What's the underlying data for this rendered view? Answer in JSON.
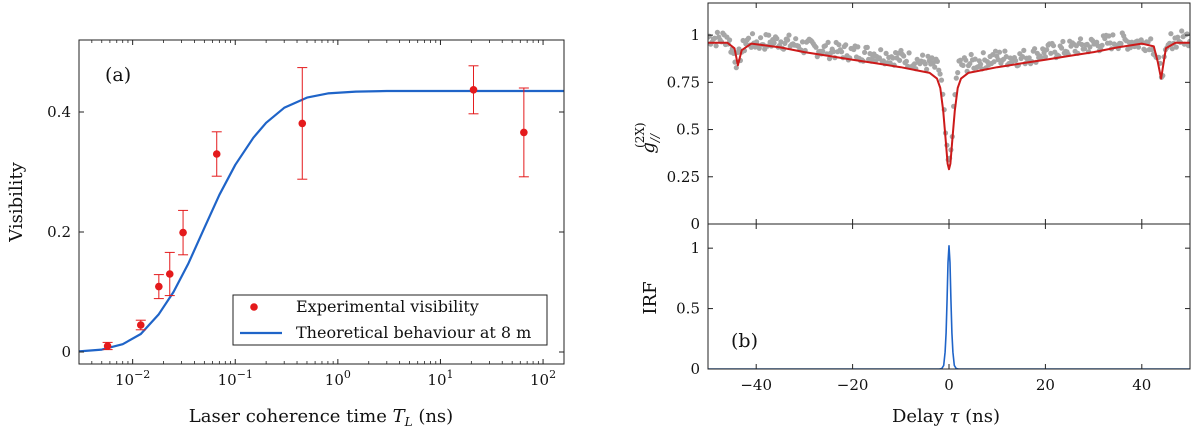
{
  "colors": {
    "experimental": "#e41a1c",
    "theory": "#1f64c8",
    "data_points": "#a6a6a6",
    "fit": "#cc1a1a",
    "irf": "#1f64c8",
    "axis": "#222222"
  },
  "chart_data": [
    {
      "type": "scatter",
      "panel_label": "(a)",
      "xlabel_main": "Laser coherence time ",
      "xlabel_var": "T",
      "xlabel_sub": "L",
      "xlabel_unit": " (ns)",
      "ylabel": "Visibility",
      "xscale": "log",
      "xlim": [
        0.003,
        160
      ],
      "ylim": [
        -0.02,
        0.52
      ],
      "x_ticks": [
        {
          "value": 0.01,
          "base": "10",
          "exp": "−2"
        },
        {
          "value": 0.1,
          "base": "10",
          "exp": "−1"
        },
        {
          "value": 1,
          "base": "10",
          "exp": "0"
        },
        {
          "value": 10,
          "base": "10",
          "exp": "1"
        },
        {
          "value": 100,
          "base": "10",
          "exp": "2"
        }
      ],
      "y_ticks": [
        {
          "value": 0,
          "label": "0"
        },
        {
          "value": 0.2,
          "label": "0.2"
        },
        {
          "value": 0.4,
          "label": "0.4"
        }
      ],
      "legend_position": "bottom-right",
      "series": [
        {
          "name": "Experimental visibility",
          "kind": "points-errorbars",
          "points": [
            {
              "x": 0.0057,
              "y": 0.01,
              "err": 0.006
            },
            {
              "x": 0.012,
              "y": 0.045,
              "err": 0.008
            },
            {
              "x": 0.018,
              "y": 0.109,
              "err": 0.02
            },
            {
              "x": 0.023,
              "y": 0.13,
              "err": 0.036
            },
            {
              "x": 0.031,
              "y": 0.199,
              "err": 0.037
            },
            {
              "x": 0.066,
              "y": 0.33,
              "err": 0.037
            },
            {
              "x": 0.45,
              "y": 0.381,
              "err": 0.093
            },
            {
              "x": 21,
              "y": 0.437,
              "err": 0.04
            },
            {
              "x": 65,
              "y": 0.366,
              "err": 0.074
            }
          ]
        },
        {
          "name": "Theoretical behaviour at 8 m",
          "kind": "line",
          "x": [
            0.003,
            0.005,
            0.008,
            0.012,
            0.018,
            0.025,
            0.035,
            0.05,
            0.07,
            0.1,
            0.15,
            0.2,
            0.3,
            0.5,
            0.8,
            1.5,
            3,
            10,
            160
          ],
          "y": [
            0.001,
            0.004,
            0.013,
            0.03,
            0.063,
            0.1,
            0.148,
            0.207,
            0.262,
            0.312,
            0.357,
            0.382,
            0.407,
            0.424,
            0.431,
            0.434,
            0.435,
            0.435,
            0.435
          ]
        }
      ]
    },
    {
      "type": "line",
      "panel_label": "(b)",
      "xlabel_main": "Delay ",
      "xlabel_var": "τ",
      "xlabel_unit": " (ns)",
      "xlim": [
        -50,
        50
      ],
      "x_ticks": [
        {
          "value": -40,
          "label": "−40"
        },
        {
          "value": -20,
          "label": "−20"
        },
        {
          "value": 0,
          "label": "0"
        },
        {
          "value": 20,
          "label": "20"
        },
        {
          "value": 40,
          "label": "40"
        }
      ],
      "upper": {
        "ylabel_main": "g",
        "ylabel_sub": "//",
        "ylabel_sup": "(2X)",
        "ylim": [
          0,
          1.17
        ],
        "y_ticks": [
          {
            "value": 0,
            "label": "0"
          },
          {
            "value": 0.25,
            "label": "0.25"
          },
          {
            "value": 0.5,
            "label": "0.5"
          },
          {
            "value": 0.75,
            "label": "0.75"
          },
          {
            "value": 1,
            "label": "1"
          }
        ],
        "series": [
          {
            "kind": "points",
            "x": [
              -50,
              -48,
              -46,
              -44,
              -42,
              -40,
              -35,
              -30,
              -25,
              -20,
              -15,
              -10,
              -6,
              -4,
              -2,
              -1.5,
              -1,
              -0.5,
              0,
              0.5,
              1,
              1.5,
              2,
              4,
              6,
              10,
              15,
              20,
              25,
              30,
              35,
              40,
              42,
              44,
              46,
              48,
              50
            ],
            "y": [
              0.99,
              0.98,
              0.99,
              0.86,
              0.97,
              0.96,
              0.97,
              0.94,
              0.92,
              0.91,
              0.9,
              0.88,
              0.86,
              0.85,
              0.82,
              0.74,
              0.58,
              0.4,
              0.3,
              0.42,
              0.61,
              0.76,
              0.84,
              0.85,
              0.86,
              0.88,
              0.88,
              0.91,
              0.93,
              0.95,
              0.97,
              0.96,
              0.97,
              0.8,
              0.97,
              0.98,
              0.99
            ]
          },
          {
            "kind": "line",
            "x": [
              -50,
              -46,
              -44.5,
              -43.8,
              -43,
              -41,
              -35,
              -30,
              -25,
              -20,
              -15,
              -10,
              -6,
              -4,
              -2.5,
              -1.8,
              -1.2,
              -0.7,
              -0.3,
              0,
              0.3,
              0.7,
              1.2,
              1.8,
              2.5,
              4,
              6,
              10,
              15,
              20,
              25,
              30,
              35,
              40,
              42.5,
              43.3,
              44,
              45,
              47,
              50
            ],
            "y": [
              0.96,
              0.96,
              0.93,
              0.84,
              0.92,
              0.955,
              0.935,
              0.91,
              0.89,
              0.87,
              0.85,
              0.83,
              0.81,
              0.8,
              0.77,
              0.72,
              0.6,
              0.45,
              0.32,
              0.29,
              0.32,
              0.45,
              0.6,
              0.72,
              0.77,
              0.8,
              0.81,
              0.83,
              0.85,
              0.87,
              0.89,
              0.91,
              0.935,
              0.955,
              0.94,
              0.86,
              0.77,
              0.93,
              0.96,
              0.96
            ]
          }
        ]
      },
      "lower": {
        "ylabel": "IRF",
        "ylim": [
          0,
          1.2
        ],
        "y_ticks": [
          {
            "value": 0,
            "label": "0"
          },
          {
            "value": 0.5,
            "label": "0.5"
          },
          {
            "value": 1,
            "label": "1"
          }
        ],
        "series": [
          {
            "kind": "line",
            "x": [
              -50,
              -2,
              -1.5,
              -1.1,
              -0.8,
              -0.6,
              -0.4,
              -0.2,
              0,
              0.2,
              0.4,
              0.6,
              0.8,
              1.1,
              1.5,
              2,
              50
            ],
            "y": [
              0,
              0,
              0.004,
              0.03,
              0.14,
              0.3,
              0.58,
              0.88,
              1.02,
              0.88,
              0.58,
              0.3,
              0.14,
              0.03,
              0.004,
              0,
              0
            ]
          }
        ]
      }
    }
  ]
}
